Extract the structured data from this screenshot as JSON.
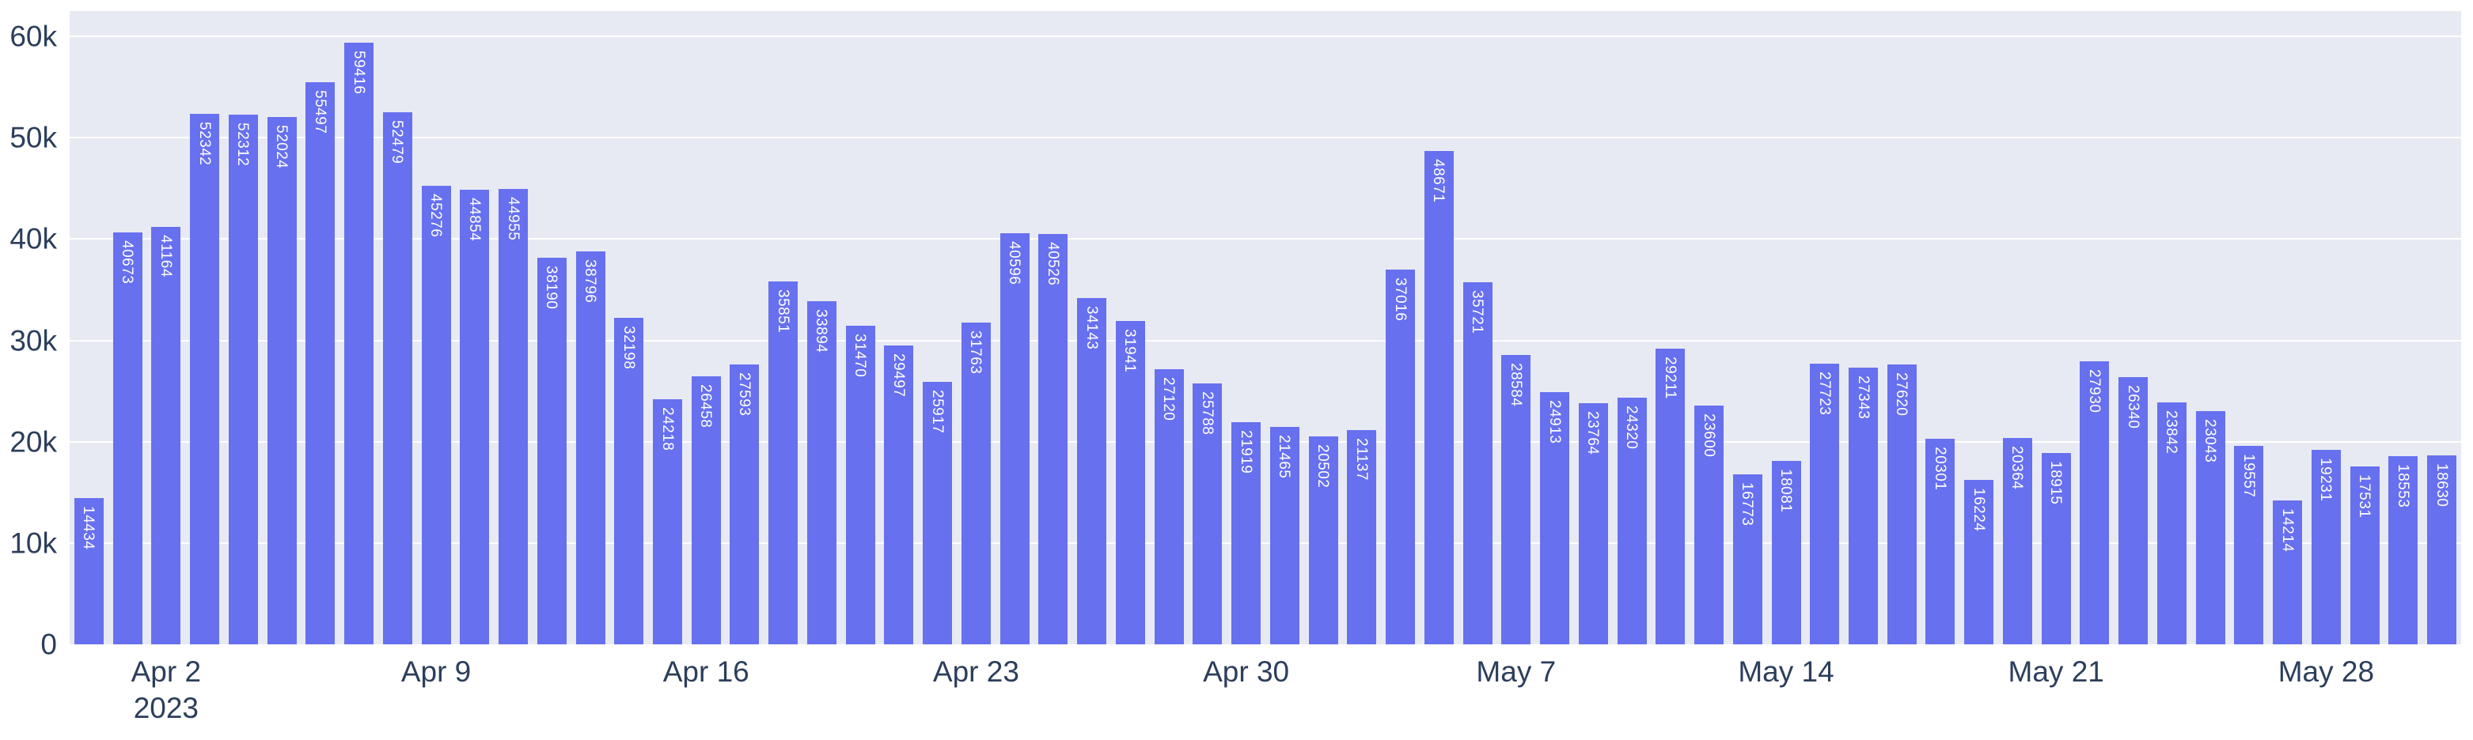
{
  "chart_data": {
    "type": "bar",
    "title": "",
    "xlabel": "",
    "ylabel": "",
    "x": [
      "2023-03-31",
      "2023-04-01",
      "2023-04-02",
      "2023-04-03",
      "2023-04-04",
      "2023-04-05",
      "2023-04-06",
      "2023-04-07",
      "2023-04-08",
      "2023-04-09",
      "2023-04-10",
      "2023-04-11",
      "2023-04-12",
      "2023-04-13",
      "2023-04-14",
      "2023-04-15",
      "2023-04-16",
      "2023-04-17",
      "2023-04-18",
      "2023-04-19",
      "2023-04-20",
      "2023-04-21",
      "2023-04-22",
      "2023-04-23",
      "2023-04-24",
      "2023-04-25",
      "2023-04-26",
      "2023-04-27",
      "2023-04-28",
      "2023-04-29",
      "2023-04-30",
      "2023-05-01",
      "2023-05-02",
      "2023-05-03",
      "2023-05-04",
      "2023-05-05",
      "2023-05-06",
      "2023-05-07",
      "2023-05-08",
      "2023-05-09",
      "2023-05-10",
      "2023-05-11",
      "2023-05-12",
      "2023-05-13",
      "2023-05-14",
      "2023-05-15",
      "2023-05-16",
      "2023-05-17",
      "2023-05-18",
      "2023-05-19",
      "2023-05-20",
      "2023-05-21",
      "2023-05-22",
      "2023-05-23",
      "2023-05-24",
      "2023-05-25",
      "2023-05-26",
      "2023-05-27",
      "2023-05-28",
      "2023-05-29",
      "2023-05-30",
      "2023-05-31"
    ],
    "values": [
      14434,
      40673,
      41164,
      52342,
      52312,
      52024,
      55497,
      59416,
      52479,
      45276,
      44854,
      44955,
      38190,
      38796,
      32198,
      24218,
      26458,
      27593,
      35851,
      33894,
      31470,
      29497,
      25917,
      31763,
      40596,
      40526,
      34143,
      31941,
      27120,
      25788,
      21919,
      21465,
      20502,
      21137,
      37016,
      48671,
      35721,
      28584,
      24913,
      23764,
      24320,
      29211,
      23600,
      16773,
      18081,
      27723,
      27343,
      27620,
      20301,
      16224,
      20364,
      18915,
      27930,
      26340,
      23842,
      23043,
      19557,
      14214,
      19231,
      17531,
      18553,
      18630
    ],
    "bar_value_labels": "inside-top, rotated 90deg, white",
    "ylim": [
      0,
      62500
    ],
    "grid": true,
    "legend_position": "none",
    "y_ticks": [
      {
        "value": 0,
        "label": "0"
      },
      {
        "value": 10000,
        "label": "10k"
      },
      {
        "value": 20000,
        "label": "20k"
      },
      {
        "value": 30000,
        "label": "30k"
      },
      {
        "value": 40000,
        "label": "40k"
      },
      {
        "value": 50000,
        "label": "50k"
      },
      {
        "value": 60000,
        "label": "60k"
      }
    ],
    "x_ticks": [
      {
        "index": 2,
        "label": "Apr 2",
        "sublabel": "2023"
      },
      {
        "index": 9,
        "label": "Apr 9",
        "sublabel": ""
      },
      {
        "index": 16,
        "label": "Apr 16",
        "sublabel": ""
      },
      {
        "index": 23,
        "label": "Apr 23",
        "sublabel": ""
      },
      {
        "index": 30,
        "label": "Apr 30",
        "sublabel": ""
      },
      {
        "index": 37,
        "label": "May 7",
        "sublabel": ""
      },
      {
        "index": 44,
        "label": "May 14",
        "sublabel": ""
      },
      {
        "index": 51,
        "label": "May 21",
        "sublabel": ""
      },
      {
        "index": 58,
        "label": "May 28",
        "sublabel": ""
      }
    ]
  },
  "colors": {
    "bar": "#6770EE",
    "plot_background": "#E8EAF3",
    "gridline": "#FFFFFF",
    "tick_text": "#2C3E5C",
    "bar_label_text": "#FFFFFF",
    "page_background": "#FFFFFF"
  }
}
